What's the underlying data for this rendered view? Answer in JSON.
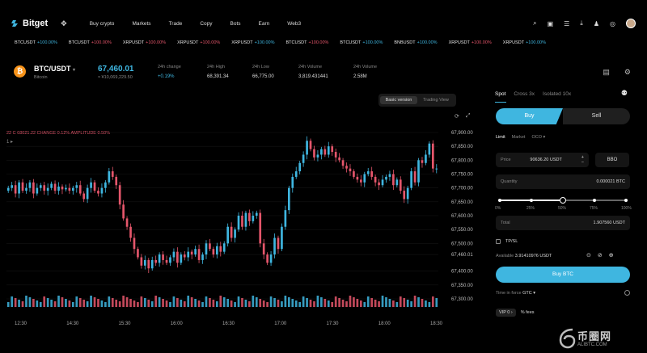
{
  "nav": {
    "brand": "Bitget",
    "links": [
      "Buy crypto",
      "Markets",
      "Trade",
      "Copy",
      "Bots",
      "Earn",
      "Web3"
    ]
  },
  "ticker": [
    {
      "symbol": "BTCUSDT",
      "change": "+100.00%",
      "neg": false
    },
    {
      "symbol": "BTCUSDT",
      "change": "+100.00%",
      "neg": true
    },
    {
      "symbol": "XRPUSDT",
      "change": "+100.00%",
      "neg": true
    },
    {
      "symbol": "XRPUSDT",
      "change": "+100.00%",
      "neg": true
    },
    {
      "symbol": "XRPUSDT",
      "change": "+100.00%",
      "neg": false
    },
    {
      "symbol": "BTCUSDT",
      "change": "+100.00%",
      "neg": true
    },
    {
      "symbol": "BTCUSDT",
      "change": "+100.00%",
      "neg": false
    },
    {
      "symbol": "BNBUSDT",
      "change": "+100.00%",
      "neg": false
    },
    {
      "symbol": "XRPUSDT",
      "change": "+100.00%",
      "neg": true
    },
    {
      "symbol": "XRPUSDT",
      "change": "+100.00%",
      "neg": false
    }
  ],
  "header": {
    "pair": "BTC/USDT",
    "pair_sub": "Bitcoin",
    "price": "67,460.01",
    "price_sub": "≈ ¥10,069,229.50",
    "stats": [
      {
        "label": "24h change",
        "value": "+0.19%"
      },
      {
        "label": "24h High",
        "value": "68,391.34"
      },
      {
        "label": "24h Low",
        "value": "66,775.00"
      },
      {
        "label": "24h Volume",
        "value": "3,819.431441"
      },
      {
        "label": "24h Volume",
        "value": "2.58M"
      }
    ]
  },
  "chart_view": {
    "modes": [
      "Basic version",
      "Trading View"
    ],
    "active_mode": "Basic version",
    "legend": "22 C 68021.22 CHANGE 0.12% AMPLITUDE 0.50%",
    "legend2": "1 ▸"
  },
  "chart_data": {
    "type": "candlestick",
    "x_ticks": [
      "12:30",
      "14:30",
      "15:30",
      "16:00",
      "16:30",
      "17:00",
      "17:30",
      "18:00",
      "18:30"
    ],
    "y_ticks": [
      "67,900.00",
      "67,850.00",
      "67,800.00",
      "67,750.00",
      "67,700.00",
      "67,650.00",
      "67,600.00",
      "67,550.00",
      "67,500.00",
      "67,460.01",
      "67,400.00",
      "67,350.00",
      "67,300.00"
    ],
    "ylim": [
      67300,
      67900
    ],
    "up_color": "#3fb6e0",
    "down_color": "#e5566b",
    "closes": [
      67700,
      67710,
      67680,
      67720,
      67690,
      67700,
      67720,
      67680,
      67700,
      67710,
      67690,
      67700,
      67715,
      67690,
      67705,
      67695,
      67700,
      67690,
      67700,
      67710,
      67680,
      67660,
      67700,
      67720,
      67690,
      67680,
      67700,
      67720,
      67760,
      67740,
      67710,
      67640,
      67590,
      67560,
      67520,
      67480,
      67450,
      67420,
      67440,
      67410,
      67440,
      67430,
      67460,
      67440,
      67430,
      67450,
      67470,
      67430,
      67460,
      67450,
      67470,
      67460,
      67480,
      67440,
      67460,
      67500,
      67480,
      67460,
      67490,
      67470,
      67500,
      67560,
      67520,
      67550,
      67600,
      67560,
      67610,
      67580,
      67600,
      67610,
      67500,
      67460,
      67430,
      67460,
      67520,
      67480,
      67560,
      67620,
      67700,
      67740,
      67760,
      67790,
      67820,
      67870,
      67840,
      67810,
      67820,
      67840,
      67820,
      67850,
      67830,
      67810,
      67800,
      67780,
      67770,
      67760,
      67740,
      67730,
      67720,
      67750,
      67760,
      67740,
      67720,
      67710,
      67730,
      67740,
      67750,
      67710,
      67730,
      67690,
      67660,
      67700,
      67760,
      67720,
      67800,
      67790,
      67820,
      67860,
      67770,
      67770
    ]
  },
  "order_panel": {
    "tabs": [
      "Spot",
      "Cross 3x",
      "Isolated 10x"
    ],
    "active_tab": "Spot",
    "buy_label": "Buy",
    "sell_label": "Sell",
    "order_types": [
      "Limit",
      "Market",
      "OCO ▾"
    ],
    "price_label": "Price",
    "price_value": "90636.20 USDT",
    "bbo_label": "BBO",
    "quantity_label": "Quantity",
    "quantity_value": "0.000021 BTC",
    "slider_labels": [
      "0%",
      "25%",
      "50%",
      "75%",
      "100%"
    ],
    "slider_value": 0.5,
    "total_label": "Total",
    "total_value": "1.907560 USDT",
    "tpsl_label": "TP/SL",
    "available_label": "Available",
    "available_value": "3.91410976 USDT",
    "buy_btn_label": "Buy BTC",
    "tif_label": "Time in force",
    "tif_value": "GTC ▾",
    "vip_label": "VIP 0 ›",
    "fees_label": "% fees"
  },
  "watermark": {
    "cn": "币圈网",
    "url": "ALIBTC.COM"
  }
}
